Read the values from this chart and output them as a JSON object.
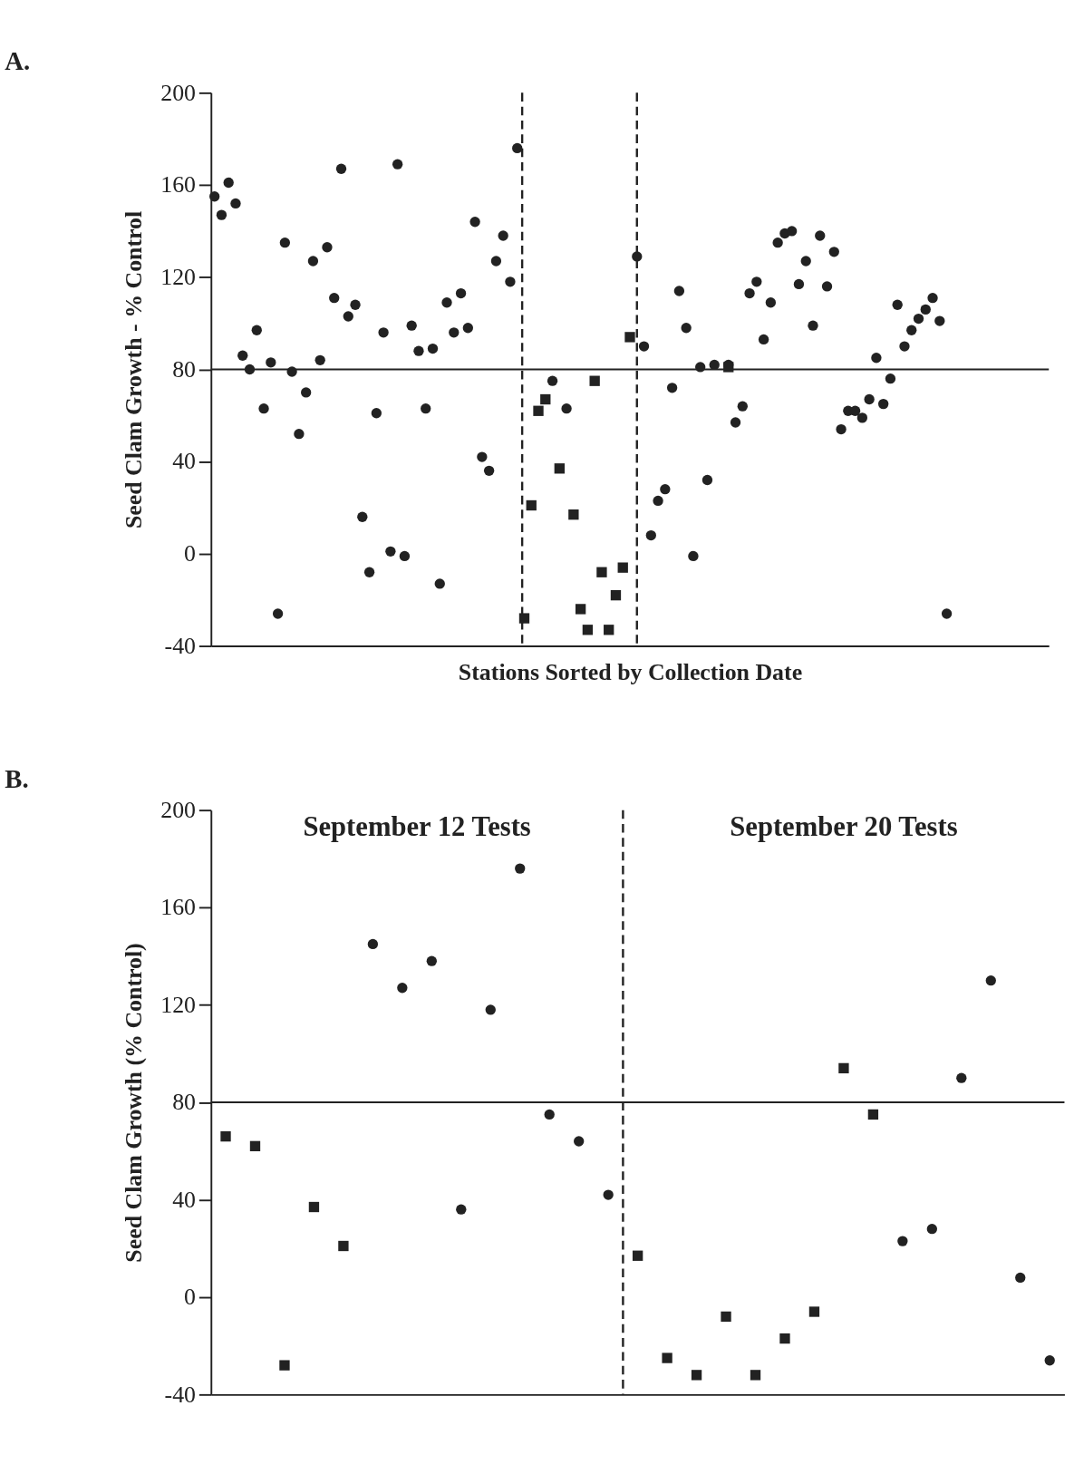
{
  "chart_data": [
    {
      "type": "scatter",
      "title": "A.",
      "xlabel": "Stations Sorted by Collection Date",
      "ylabel": "Seed Clam Growth - % Control",
      "categories": [
        null,
        null,
        null,
        null,
        null,
        null,
        null,
        null,
        null,
        null,
        null,
        null,
        null,
        null,
        null,
        null,
        null,
        null,
        null,
        null,
        null,
        null,
        null,
        null,
        null,
        null,
        null,
        null,
        null,
        null,
        null,
        null,
        null,
        null,
        null,
        null,
        null,
        null,
        null,
        null,
        null,
        null,
        null,
        null,
        null,
        null,
        null,
        null,
        null,
        null,
        null,
        null,
        null,
        null,
        null,
        null,
        null,
        null,
        null,
        null,
        null,
        null,
        null,
        null,
        null,
        null,
        null,
        null,
        null,
        null,
        null,
        null,
        null,
        null,
        null,
        null,
        null,
        null,
        null,
        null,
        null,
        null,
        null,
        null,
        null,
        null,
        null,
        null,
        null,
        null,
        null,
        null,
        null,
        null,
        null,
        null,
        null,
        null,
        null,
        null,
        null,
        null,
        null,
        null,
        null,
        null,
        null,
        null,
        null,
        null,
        null,
        null,
        null,
        null,
        null,
        null,
        null,
        null,
        null
      ],
      "ylim": [
        -40,
        200
      ],
      "yticks": [
        -40,
        0,
        40,
        80,
        120,
        160,
        200
      ],
      "tick_labels": "y",
      "grid": false,
      "series": [
        {
          "marker": "circle",
          "color": "#222222",
          "values": [
            155,
            147,
            161,
            152,
            86,
            80,
            97,
            63,
            83,
            -26,
            135,
            79,
            52,
            70,
            127,
            84,
            133,
            111,
            167,
            103,
            108,
            16,
            -8,
            61,
            96,
            1,
            169,
            -1,
            99,
            88,
            63,
            89,
            -13,
            109,
            96,
            113,
            98,
            144,
            42,
            36,
            127,
            138,
            118,
            176,
            null,
            null,
            null,
            null,
            75,
            null,
            63,
            null,
            null,
            null,
            null,
            null,
            null,
            null,
            null,
            null,
            129,
            90,
            8,
            23,
            28,
            72,
            114,
            98,
            -1,
            81,
            32,
            82,
            null,
            82,
            57,
            64,
            113,
            118,
            93,
            109,
            135,
            139,
            140,
            117,
            127,
            99,
            138,
            116,
            131,
            54,
            62,
            62,
            59,
            67,
            85,
            65,
            76,
            108,
            90,
            97,
            102,
            106,
            111,
            101,
            -26,
            null,
            null,
            null,
            null,
            null,
            null,
            null,
            null,
            null,
            null,
            null,
            null,
            null,
            null
          ]
        },
        {
          "marker": "square",
          "color": "#222222",
          "values": [
            null,
            null,
            null,
            null,
            null,
            null,
            null,
            null,
            null,
            null,
            null,
            null,
            null,
            null,
            null,
            null,
            null,
            null,
            null,
            null,
            null,
            null,
            null,
            null,
            null,
            null,
            null,
            null,
            null,
            null,
            null,
            null,
            null,
            null,
            null,
            null,
            null,
            null,
            null,
            null,
            null,
            null,
            null,
            null,
            -28,
            21,
            62,
            67,
            null,
            37,
            null,
            17,
            -24,
            -33,
            75,
            -8,
            -33,
            -18,
            -6,
            94,
            null,
            null,
            null,
            null,
            null,
            null,
            null,
            null,
            null,
            null,
            null,
            null,
            null,
            81,
            null,
            null,
            null,
            null,
            null,
            null,
            null,
            null,
            null,
            null,
            null,
            null,
            null,
            null,
            null,
            null,
            null,
            null,
            null,
            null,
            null,
            null,
            null,
            null,
            null,
            null,
            null,
            null,
            null,
            null,
            null,
            null,
            null,
            null,
            null,
            null,
            null,
            null,
            null,
            null,
            null,
            null,
            null,
            null,
            null
          ]
        }
      ],
      "ref_lines": [
        {
          "axis": "y",
          "value": 80,
          "color": "#222222",
          "line_style": "solid"
        }
      ]
    },
    {
      "type": "scatter",
      "title": "B.",
      "ylabel": "Seed Clam Growth (% Control)",
      "categories": [
        null,
        null,
        null,
        null,
        null,
        null,
        null,
        null,
        null,
        null,
        null,
        null,
        null,
        null,
        null,
        null,
        null,
        null,
        null,
        null,
        null,
        null,
        null,
        null,
        null,
        null,
        null,
        null,
        null
      ],
      "ylim": [
        -40,
        200
      ],
      "yticks": [
        -40,
        0,
        40,
        80,
        120,
        160,
        200
      ],
      "tick_labels": "y",
      "grid": false,
      "series": [
        {
          "marker": "circle",
          "color": "#222222",
          "values": [
            null,
            null,
            null,
            null,
            null,
            145,
            127,
            138,
            36,
            118,
            176,
            75,
            64,
            42,
            null,
            null,
            null,
            null,
            null,
            null,
            null,
            null,
            null,
            23,
            28,
            90,
            130,
            8,
            -26
          ]
        },
        {
          "marker": "square",
          "color": "#222222",
          "values": [
            66,
            62,
            -28,
            37,
            21,
            null,
            null,
            null,
            null,
            null,
            null,
            null,
            null,
            null,
            17,
            -25,
            -32,
            -8,
            -32,
            -17,
            -6,
            94,
            75,
            null,
            null,
            null,
            null,
            null,
            null
          ]
        }
      ],
      "ref_lines": [
        {
          "axis": "y",
          "value": 80,
          "color": "#222222",
          "line_style": "solid"
        }
      ],
      "annotations": [
        "September 12 Tests",
        "September 20 Tests"
      ]
    }
  ]
}
